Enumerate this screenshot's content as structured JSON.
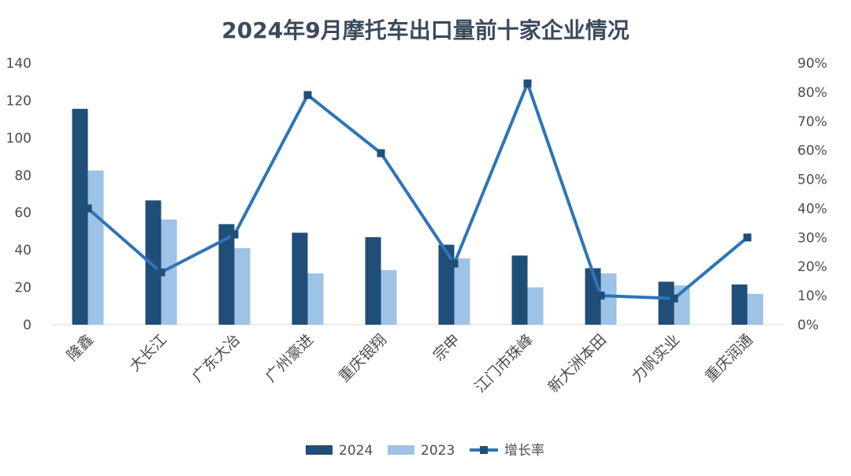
{
  "chart_data": {
    "type": "bar",
    "title": "2024年9月摩托车出口量前十家企业情况",
    "categories": [
      "隆鑫",
      "大长江",
      "广东大冶",
      "广州豪进",
      "重庆银翔",
      "宗申",
      "江门市珠峰",
      "新大洲本田",
      "力帆实业",
      "重庆润通"
    ],
    "series": [
      {
        "name": "2024",
        "kind": "bar",
        "axis": "left",
        "color": "#1f4e79",
        "values": [
          115.5,
          66.5,
          53.8,
          49.2,
          46.8,
          42.8,
          37.0,
          30.2,
          23.0,
          21.5
        ]
      },
      {
        "name": "2023",
        "kind": "bar",
        "axis": "left",
        "color": "#9dc3e6",
        "values": [
          82.5,
          56.3,
          41.0,
          27.5,
          29.2,
          35.5,
          20.0,
          27.5,
          21.0,
          16.5
        ]
      },
      {
        "name": "增长率",
        "kind": "line",
        "axis": "right",
        "color": "#2e75b6",
        "values": [
          0.4,
          0.18,
          0.31,
          0.79,
          0.59,
          0.21,
          0.83,
          0.1,
          0.09,
          0.3
        ]
      }
    ],
    "left_axis": {
      "min": 0,
      "max": 140,
      "ticks": [
        "0",
        "20",
        "40",
        "60",
        "80",
        "100",
        "120",
        "140"
      ]
    },
    "right_axis": {
      "min": 0,
      "max": 0.9,
      "ticks": [
        "0%",
        "10%",
        "20%",
        "30%",
        "40%",
        "50%",
        "60%",
        "70%",
        "80%",
        "90%"
      ]
    },
    "grid": false,
    "legend_position": "bottom"
  }
}
